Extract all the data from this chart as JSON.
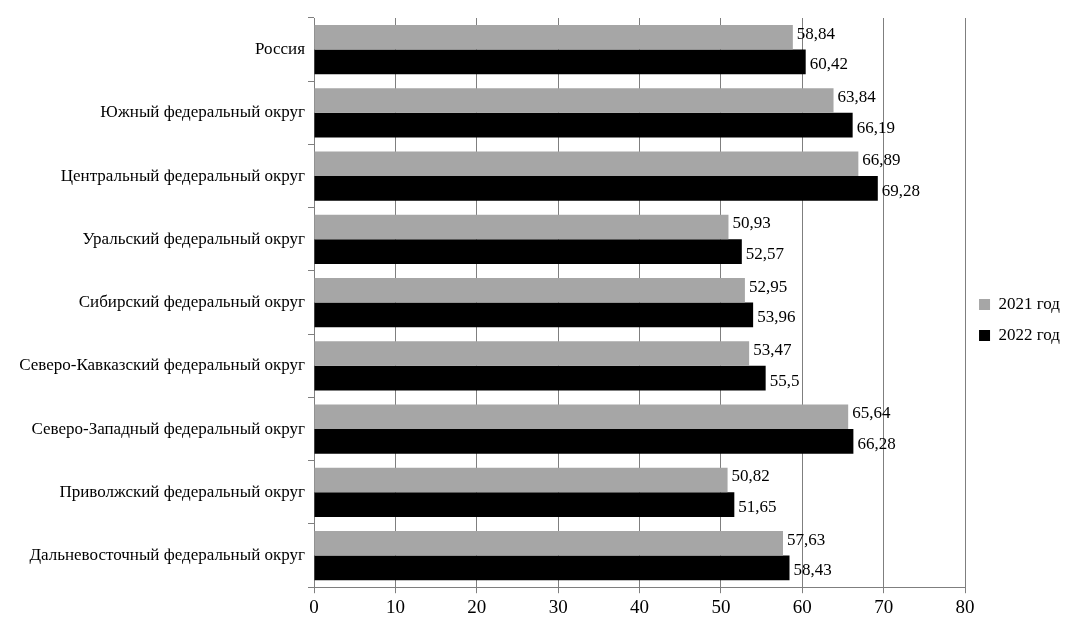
{
  "chart_data": {
    "type": "bar",
    "orientation": "horizontal",
    "categories": [
      "Россия",
      "Южный федеральный округ",
      "Центральный федеральный округ",
      "Уральский федеральный округ",
      "Сибирский федеральный округ",
      "Северо-Кавказский федеральный округ",
      "Северо-Западный федеральный округ",
      "Приволжский федеральный округ",
      "Дальневосточный федеральный округ"
    ],
    "series": [
      {
        "name": "2021 год",
        "color": "#a6a6a6",
        "values": [
          58.84,
          63.84,
          66.89,
          50.93,
          52.95,
          53.47,
          65.64,
          50.82,
          57.63
        ],
        "value_labels": [
          "58,84",
          "63,84",
          "66,89",
          "50,93",
          "52,95",
          "53,47",
          "65,64",
          "50,82",
          "57,63"
        ]
      },
      {
        "name": "2022 год",
        "color": "#000000",
        "values": [
          60.42,
          66.19,
          69.28,
          52.57,
          53.96,
          55.5,
          66.28,
          51.65,
          58.43
        ],
        "value_labels": [
          "60,42",
          "66,19",
          "69,28",
          "52,57",
          "53,96",
          "55,5",
          "66,28",
          "51,65",
          "58,43"
        ]
      }
    ],
    "xlim": [
      0,
      80
    ],
    "xticks": [
      0,
      10,
      20,
      30,
      40,
      50,
      60,
      70,
      80
    ],
    "grid": "x",
    "legend": "right"
  }
}
